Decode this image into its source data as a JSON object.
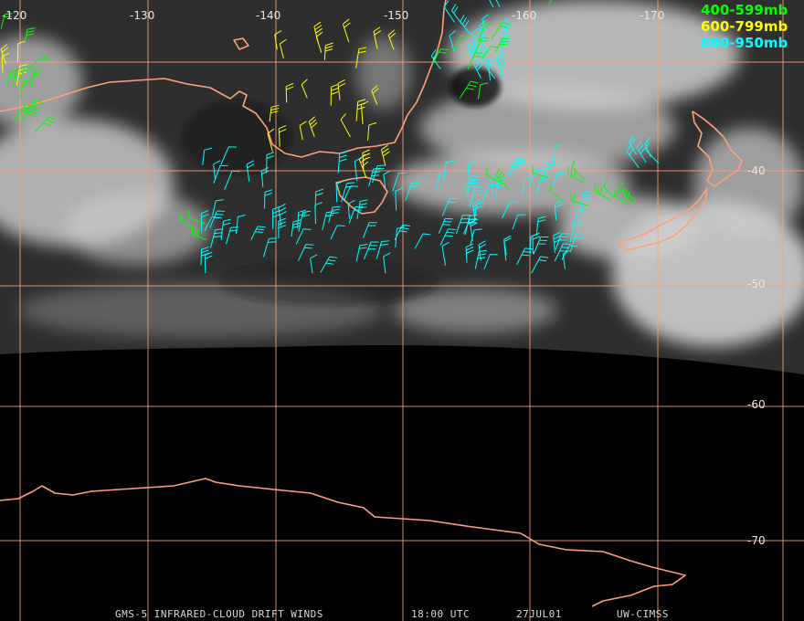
{
  "map": {
    "longitude_labels": [
      "-120",
      "-130",
      "-140",
      "-150",
      "-160",
      "-170"
    ],
    "latitude_labels": [
      "-40",
      "-50",
      "-60",
      "-70"
    ],
    "legend": [
      {
        "label": "400-599mb",
        "color": "#00ff00"
      },
      {
        "label": "600-799mb",
        "color": "#ffff00"
      },
      {
        "label": "800-950mb",
        "color": "#00ffff"
      }
    ]
  },
  "footer": {
    "product": "GMS-5 INFRARED-CLOUD DRIFT WINDS",
    "time": "18:00 UTC",
    "date": "27JUL01",
    "source": "UW-CIMSS"
  }
}
